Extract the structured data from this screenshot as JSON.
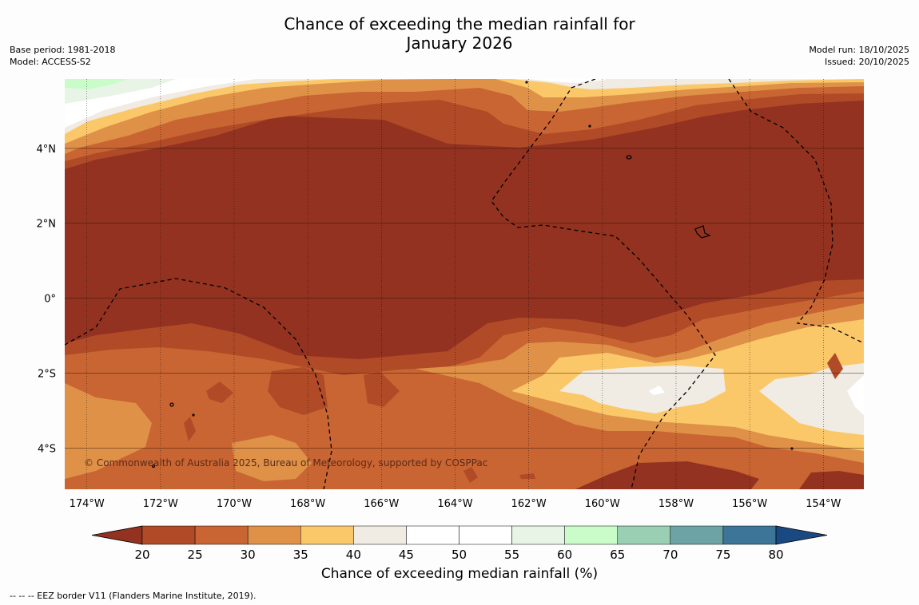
{
  "title_line1": "Chance of exceeding the median rainfall for",
  "title_line2": "January 2026",
  "meta_left": [
    "Base period: 1981-2018",
    "Model: ACCESS-S2"
  ],
  "meta_right": [
    "Model run: 18/10/2025",
    "Issued: 20/10/2025"
  ],
  "map": {
    "lon_range": [
      -174.6,
      -152.9
    ],
    "lat_range": [
      -5.1,
      5.85
    ],
    "lon_ticks": [
      {
        "value": -174,
        "label": "174°W"
      },
      {
        "value": -172,
        "label": "172°W"
      },
      {
        "value": -170,
        "label": "170°W"
      },
      {
        "value": -168,
        "label": "168°W"
      },
      {
        "value": -166,
        "label": "166°W"
      },
      {
        "value": -164,
        "label": "164°W"
      },
      {
        "value": -162,
        "label": "162°W"
      },
      {
        "value": -160,
        "label": "160°W"
      },
      {
        "value": -158,
        "label": "158°W"
      },
      {
        "value": -156,
        "label": "156°W"
      },
      {
        "value": -154,
        "label": "154°W"
      }
    ],
    "lat_ticks": [
      {
        "value": 4,
        "label": "4°N"
      },
      {
        "value": 2,
        "label": "2°N"
      },
      {
        "value": 0,
        "label": "0°"
      },
      {
        "value": -2,
        "label": "2°S"
      },
      {
        "value": -4,
        "label": "4°S"
      }
    ],
    "copyright": "© Commonwealth of Australia 2025, Bureau of Meteorology, supported by COSPPac"
  },
  "colorbar": {
    "label": "Chance of exceeding median rainfall (%)",
    "ticks": [
      "20",
      "25",
      "30",
      "35",
      "40",
      "45",
      "50",
      "55",
      "60",
      "65",
      "70",
      "75",
      "80"
    ],
    "colors": [
      "#933220",
      "#b04a27",
      "#c96532",
      "#df9148",
      "#fbc869",
      "#f0ebe3",
      "#ffffff",
      "#ffffff",
      "#e8f5e6",
      "#c9fcc9",
      "#9bcfb4",
      "#6ea3a6",
      "#3d7598",
      "#1a4981"
    ]
  },
  "footer": "--  --  -- EEZ border V11 (Flanders Marine Institute, 2019)."
}
